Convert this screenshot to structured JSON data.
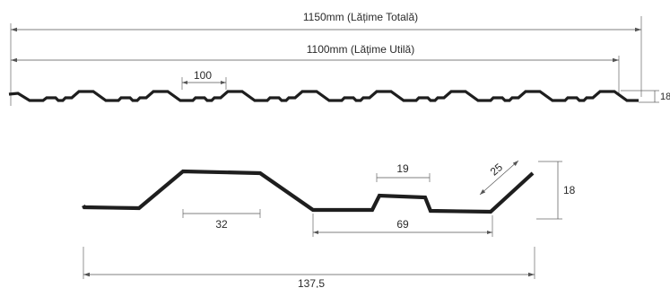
{
  "dimensions": {
    "total_width": "1150mm (Lățime Totală)",
    "useful_width": "1100mm (Lățime Utilă)",
    "pitch": "100",
    "profile_height_top": "18",
    "crest_width": "32",
    "rib_width": "19",
    "valley_width": "69",
    "slope_length": "25",
    "profile_height": "18",
    "module_width": "137,5"
  },
  "colors": {
    "profile": "#1e1e1e",
    "dimension_lines": "#555555"
  }
}
